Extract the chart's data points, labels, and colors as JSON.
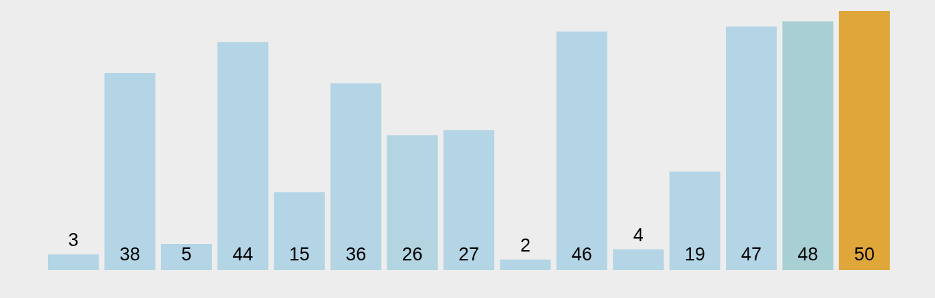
{
  "chart_data": {
    "type": "bar",
    "categories": [
      null,
      null,
      null,
      null,
      null,
      null,
      null,
      null,
      null,
      null,
      null,
      null,
      null,
      null,
      null
    ],
    "values": [
      3,
      38,
      5,
      44,
      15,
      36,
      26,
      27,
      2,
      46,
      4,
      19,
      47,
      48,
      50
    ],
    "colors": [
      "#b3d5e5",
      "#b3d5e5",
      "#b3d5e5",
      "#b3d5e5",
      "#b3d5e5",
      "#b3d5e5",
      "#b3d5e2",
      "#b3d5e5",
      "#b3d5e5",
      "#b3d5e5",
      "#b3d5e5",
      "#b3d5e5",
      "#b3d5e5",
      "#a8cfd3",
      "#dfa63a"
    ],
    "data_labels": true
  }
}
